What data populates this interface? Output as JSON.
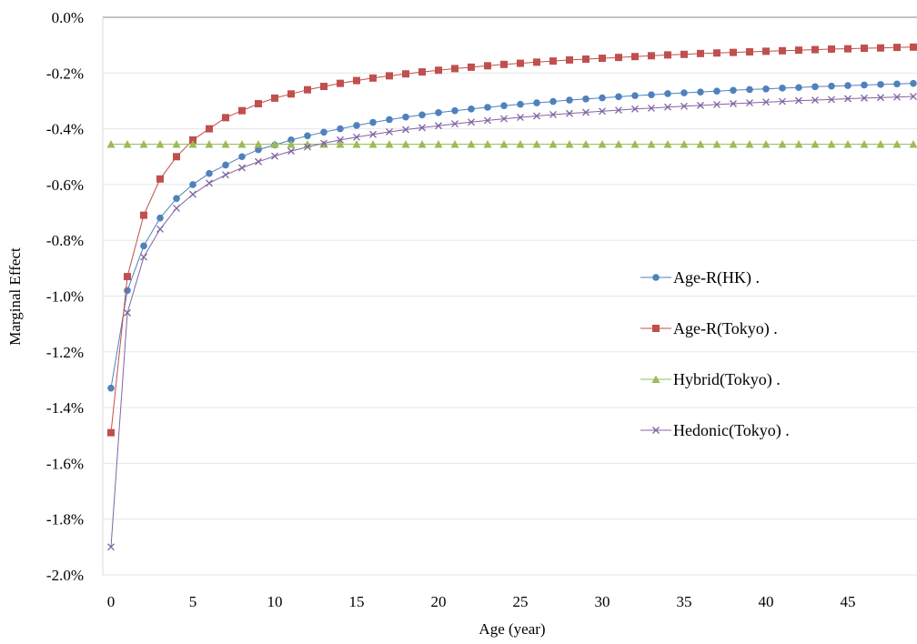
{
  "chart_data": {
    "type": "line",
    "title": "",
    "xlabel": "Age (year)",
    "ylabel": "Marginal Effect",
    "xlim": [
      0,
      49
    ],
    "ylim": [
      -2.0,
      0.0
    ],
    "x_ticks": [
      0,
      5,
      10,
      15,
      20,
      25,
      30,
      35,
      40,
      45
    ],
    "y_ticks": [
      0.0,
      -0.2,
      -0.4,
      -0.6,
      -0.8,
      -1.0,
      -1.2,
      -1.4,
      -1.6,
      -1.8,
      -2.0
    ],
    "y_tick_labels": [
      "0.0%",
      "-0.2%",
      "-0.4%",
      "-0.6%",
      "-0.8%",
      "-1.0%",
      "-1.2%",
      "-1.4%",
      "-1.6%",
      "-1.8%",
      "-2.0%"
    ],
    "grid": true,
    "legend_position": "right",
    "x": [
      0,
      1,
      2,
      3,
      4,
      5,
      6,
      7,
      8,
      9,
      10,
      11,
      12,
      13,
      14,
      15,
      16,
      17,
      18,
      19,
      20,
      21,
      22,
      23,
      24,
      25,
      26,
      27,
      28,
      29,
      30,
      31,
      32,
      33,
      34,
      35,
      36,
      37,
      38,
      39,
      40,
      41,
      42,
      43,
      44,
      45,
      46,
      47,
      48,
      49
    ],
    "series": [
      {
        "name": "Age-R(HK) .",
        "color": "#4f81bd",
        "marker": "circle",
        "values": [
          -1.33,
          -0.98,
          -0.82,
          -0.72,
          -0.65,
          -0.6,
          -0.56,
          -0.53,
          -0.5,
          -0.475,
          -0.458,
          -0.44,
          -0.425,
          -0.412,
          -0.4,
          -0.388,
          -0.377,
          -0.367,
          -0.358,
          -0.35,
          -0.342,
          -0.335,
          -0.329,
          -0.323,
          -0.317,
          -0.312,
          -0.307,
          -0.302,
          -0.297,
          -0.293,
          -0.289,
          -0.285,
          -0.281,
          -0.278,
          -0.274,
          -0.271,
          -0.268,
          -0.265,
          -0.262,
          -0.259,
          -0.257,
          -0.254,
          -0.252,
          -0.249,
          -0.247,
          -0.245,
          -0.243,
          -0.241,
          -0.239,
          -0.237
        ]
      },
      {
        "name": "Age-R(Tokyo) .",
        "color": "#c0504d",
        "marker": "square",
        "values": [
          -1.49,
          -0.93,
          -0.71,
          -0.58,
          -0.5,
          -0.44,
          -0.4,
          -0.36,
          -0.335,
          -0.31,
          -0.29,
          -0.275,
          -0.26,
          -0.248,
          -0.237,
          -0.227,
          -0.218,
          -0.21,
          -0.203,
          -0.196,
          -0.19,
          -0.184,
          -0.179,
          -0.174,
          -0.169,
          -0.165,
          -0.161,
          -0.157,
          -0.153,
          -0.15,
          -0.147,
          -0.144,
          -0.141,
          -0.138,
          -0.135,
          -0.133,
          -0.13,
          -0.128,
          -0.126,
          -0.124,
          -0.122,
          -0.12,
          -0.118,
          -0.116,
          -0.114,
          -0.113,
          -0.111,
          -0.11,
          -0.108,
          -0.107
        ]
      },
      {
        "name": "Hybrid(Tokyo) .",
        "color": "#9bbb59",
        "marker": "triangle",
        "values": [
          -0.455,
          -0.455,
          -0.455,
          -0.455,
          -0.455,
          -0.455,
          -0.455,
          -0.455,
          -0.455,
          -0.455,
          -0.455,
          -0.455,
          -0.455,
          -0.455,
          -0.455,
          -0.455,
          -0.455,
          -0.455,
          -0.455,
          -0.455,
          -0.455,
          -0.455,
          -0.455,
          -0.455,
          -0.455,
          -0.455,
          -0.455,
          -0.455,
          -0.455,
          -0.455,
          -0.455,
          -0.455,
          -0.455,
          -0.455,
          -0.455,
          -0.455,
          -0.455,
          -0.455,
          -0.455,
          -0.455,
          -0.455,
          -0.455,
          -0.455,
          -0.455,
          -0.455,
          -0.455,
          -0.455,
          -0.455,
          -0.455,
          -0.455
        ]
      },
      {
        "name": "Hedonic(Tokyo) .",
        "color": "#8064a2",
        "marker": "x",
        "values": [
          -1.9,
          -1.06,
          -0.86,
          -0.76,
          -0.685,
          -0.635,
          -0.595,
          -0.565,
          -0.54,
          -0.518,
          -0.498,
          -0.48,
          -0.465,
          -0.452,
          -0.44,
          -0.43,
          -0.42,
          -0.411,
          -0.403,
          -0.396,
          -0.389,
          -0.382,
          -0.376,
          -0.37,
          -0.364,
          -0.359,
          -0.354,
          -0.349,
          -0.345,
          -0.341,
          -0.337,
          -0.333,
          -0.329,
          -0.326,
          -0.322,
          -0.319,
          -0.316,
          -0.313,
          -0.31,
          -0.307,
          -0.304,
          -0.302,
          -0.299,
          -0.297,
          -0.295,
          -0.292,
          -0.29,
          -0.288,
          -0.286,
          -0.284
        ]
      }
    ]
  }
}
